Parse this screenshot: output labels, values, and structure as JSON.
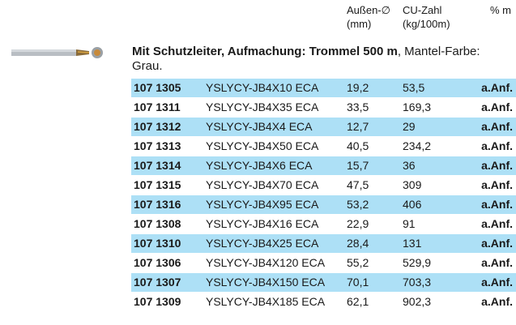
{
  "header": {
    "columns": [
      [
        "Außen-∅",
        "(mm)"
      ],
      [
        "CU-Zahl",
        "(kg/100m)"
      ],
      [
        "% m"
      ]
    ]
  },
  "section": {
    "title_bold": "Mit Schutzleiter, Aufmachung: Trommel 500 m",
    "title_rest": ", Mantel-Farbe: Grau."
  },
  "table": {
    "rows": [
      [
        "107 1305",
        "YSLYCY-JB4X10 ECA",
        "19,2",
        "53,5",
        "a.Anf."
      ],
      [
        "107 1311",
        "YSLYCY-JB4X35 ECA",
        "33,5",
        "169,3",
        "a.Anf."
      ],
      [
        "107 1312",
        "YSLYCY-JB4X4 ECA",
        "12,7",
        "29",
        "a.Anf."
      ],
      [
        "107 1313",
        "YSLYCY-JB4X50 ECA",
        "40,5",
        "234,2",
        "a.Anf."
      ],
      [
        "107 1314",
        "YSLYCY-JB4X6 ECA",
        "15,7",
        "36",
        "a.Anf."
      ],
      [
        "107 1315",
        "YSLYCY-JB4X70 ECA",
        "47,5",
        "309",
        "a.Anf."
      ],
      [
        "107 1316",
        "YSLYCY-JB4X95 ECA",
        "53,2",
        "406",
        "a.Anf."
      ],
      [
        "107 1308",
        "YSLYCY-JB4X16 ECA",
        "22,9",
        "91",
        "a.Anf."
      ],
      [
        "107 1310",
        "YSLYCY-JB4X25 ECA",
        "28,4",
        "131",
        "a.Anf."
      ],
      [
        "107 1306",
        "YSLYCY-JB4X120 ECA",
        "55,2",
        "529,9",
        "a.Anf."
      ],
      [
        "107 1307",
        "YSLYCY-JB4X150 ECA",
        "70,1",
        "703,3",
        "a.Anf."
      ],
      [
        "107 1309",
        "YSLYCY-JB4X185 ECA",
        "62,1",
        "902,3",
        "a.Anf."
      ]
    ]
  }
}
